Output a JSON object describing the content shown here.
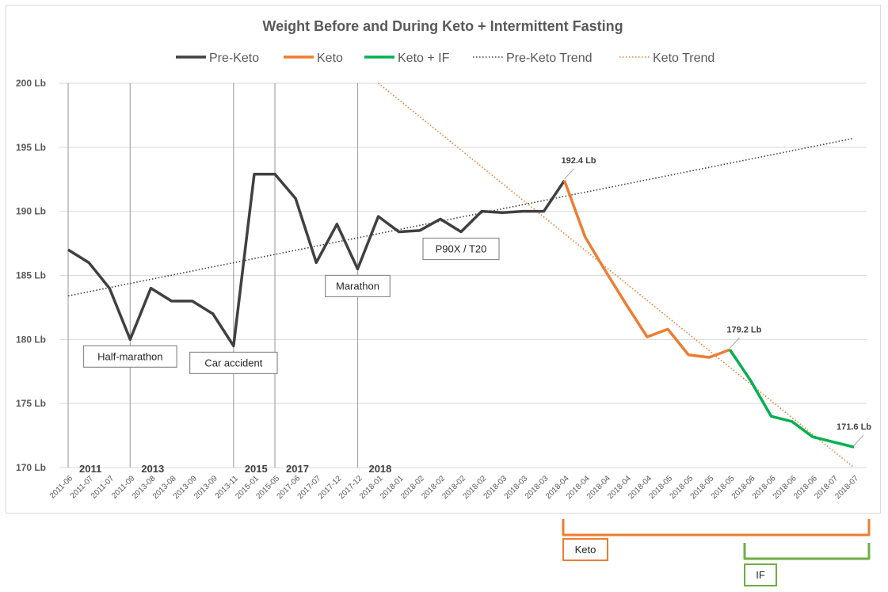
{
  "chart_data": {
    "type": "line",
    "title": "Weight Before and During Keto + Intermittent Fasting",
    "xlabel": "",
    "ylabel": "",
    "ylim": [
      170,
      200
    ],
    "ytick_step": 5,
    "ytick_labels": [
      "170 Lb",
      "175 Lb",
      "180 Lb",
      "185 Lb",
      "190 Lb",
      "195 Lb",
      "200 Lb"
    ],
    "grid": "horizontal",
    "legend_position": "top",
    "categories": [
      "2011-06",
      "2011-07",
      "2011-07",
      "2011-09",
      "2013-08",
      "2013-08",
      "2013-09",
      "2013-09",
      "2013-11",
      "2015-01",
      "2015-05",
      "2017-06",
      "2017-07",
      "2017-12",
      "2017-12",
      "2018-01",
      "2018-01",
      "2018-02",
      "2018-02",
      "2018-02",
      "2018-02",
      "2018-03",
      "2018-03",
      "2018-03",
      "2018-04",
      "2018-04",
      "2018-04",
      "2018-04",
      "2018-04",
      "2018-05",
      "2018-05",
      "2018-05",
      "2018-05",
      "2018-06",
      "2018-06",
      "2018-06",
      "2018-06",
      "2018-07",
      "2018-07"
    ],
    "weights": [
      187.0,
      186.0,
      184.0,
      180.0,
      184.0,
      183.0,
      183.0,
      182.0,
      179.5,
      192.9,
      192.9,
      191.0,
      186.0,
      189.0,
      185.5,
      189.6,
      188.4,
      188.5,
      189.4,
      188.4,
      190.0,
      189.9,
      190.0,
      190.0,
      192.4,
      188.0,
      185.3,
      182.7,
      180.2,
      180.8,
      178.8,
      178.6,
      179.2,
      176.8,
      174.0,
      173.6,
      172.4,
      172.0,
      171.6
    ],
    "series": [
      {
        "name": "Pre-Keto",
        "color": "#404040",
        "start_index": 0,
        "end_index": 24,
        "style": "solid"
      },
      {
        "name": "Keto",
        "color": "#ED7D31",
        "start_index": 24,
        "end_index": 32,
        "style": "solid"
      },
      {
        "name": "Keto + IF",
        "color": "#00B050",
        "start_index": 32,
        "end_index": 38,
        "style": "solid"
      }
    ],
    "trends": [
      {
        "name": "Pre-Keto Trend",
        "color": "#404040",
        "style": "dotted",
        "from": {
          "index": 0,
          "value": 183.4
        },
        "to": {
          "index": 38,
          "value": 195.7
        }
      },
      {
        "name": "Keto Trend",
        "color": "#ED7D31",
        "style": "dotted",
        "from": {
          "index": 15,
          "value": 200.0
        },
        "to": {
          "index": 38,
          "value": 170.0
        }
      }
    ],
    "year_markers": [
      {
        "index": 0,
        "label": "2011"
      },
      {
        "index": 3,
        "label": "2013"
      },
      {
        "index": 8,
        "label": "2015"
      },
      {
        "index": 10,
        "label": "2017"
      },
      {
        "index": 14,
        "label": "2018"
      }
    ],
    "data_labels": [
      {
        "index": 24,
        "text": "192.4 Lb"
      },
      {
        "index": 32,
        "text": "179.2 Lb"
      },
      {
        "index": 38,
        "text": "171.6 Lb"
      }
    ],
    "annotations": [
      {
        "index": 3,
        "text": "Half-marathon"
      },
      {
        "index": 8,
        "text": "Car accident"
      },
      {
        "index": 14,
        "text": "Marathon"
      },
      {
        "index": 19,
        "text": "P90X / T20"
      }
    ],
    "phase_brackets": [
      {
        "label": "Keto",
        "color": "#ED7D31",
        "start_index": 24,
        "end_index": 38
      },
      {
        "label": "IF",
        "color": "#70AD47",
        "start_index": 32,
        "end_index": 38
      }
    ]
  }
}
